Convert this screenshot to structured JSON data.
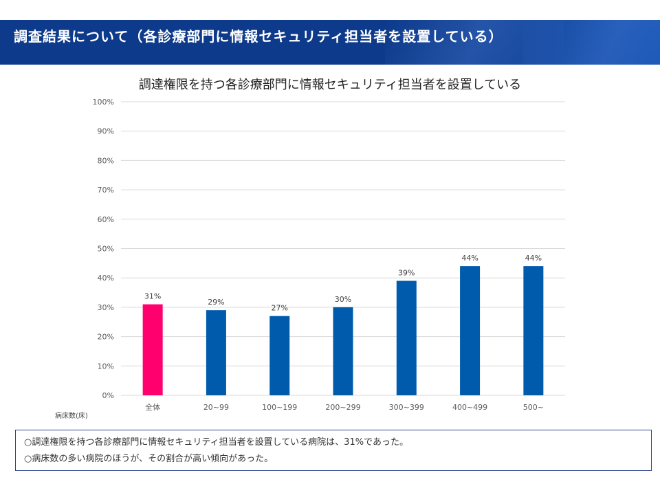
{
  "header": {
    "title": "調査結果について（各診療部門に情報セキュリティ担当者を設置している）"
  },
  "chart_data": {
    "type": "bar",
    "title": "調達権限を持つ各診療部門に情報セキュリティ担当者を設置している",
    "xlabel": "病床数(床)",
    "ylabel": "",
    "ylim": [
      0,
      100
    ],
    "yticks": [
      "0%",
      "10%",
      "20%",
      "30%",
      "40%",
      "50%",
      "60%",
      "70%",
      "80%",
      "90%",
      "100%"
    ],
    "grid": true,
    "categories": [
      "全体",
      "20~99",
      "100~199",
      "200~299",
      "300~399",
      "400~499",
      "500~"
    ],
    "values": [
      31,
      29,
      27,
      30,
      39,
      44,
      44
    ],
    "value_labels": [
      "31%",
      "29%",
      "27%",
      "30%",
      "39%",
      "44%",
      "44%"
    ],
    "colors": {
      "highlight": "#ff006e",
      "bar": "#005bac",
      "grid": "#d9d9d9",
      "axis_text": "#595959"
    }
  },
  "notes": [
    "○調達権限を持つ各診療部門に情報セキュリティ担当者を設置している病院は、31%であった。",
    "○病床数の多い病院のほうが、その割合が高い傾向があった。"
  ]
}
